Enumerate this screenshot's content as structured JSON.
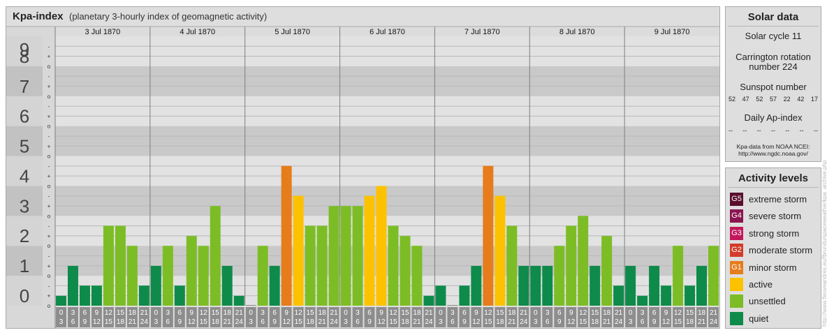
{
  "header": {
    "title": "Kpa-index",
    "subtitle": "(planetary 3-hourly index of geomagnetic activity)"
  },
  "chart_data": {
    "type": "bar",
    "title": "Kpa-index",
    "subtitle": "(planetary 3-hourly index of geomagnetic activity)",
    "ylim": [
      0,
      9
    ],
    "y_ticks": [
      "0",
      "1",
      "2",
      "3",
      "4",
      "5",
      "6",
      "7",
      "8",
      "9"
    ],
    "minor_ticks": [
      "-",
      "o",
      "+"
    ],
    "days": [
      "3 Jul 1870",
      "4 Jul 1870",
      "5 Jul 1870",
      "6 Jul 1870",
      "7 Jul 1870",
      "8 Jul 1870",
      "9 Jul 1870"
    ],
    "intervals": [
      [
        "0",
        "3"
      ],
      [
        "3",
        "6"
      ],
      [
        "6",
        "9"
      ],
      [
        "9",
        "12"
      ],
      [
        "12",
        "15"
      ],
      [
        "15",
        "18"
      ],
      [
        "18",
        "21"
      ],
      [
        "21",
        "24"
      ]
    ],
    "values": [
      [
        0.33,
        1.33,
        0.67,
        0.67,
        2.67,
        2.67,
        2.0,
        0.67
      ],
      [
        1.33,
        2.0,
        0.67,
        2.33,
        2.0,
        3.33,
        1.33,
        0.33
      ],
      [
        0.0,
        2.0,
        1.33,
        4.67,
        3.67,
        2.67,
        2.67,
        3.33
      ],
      [
        3.33,
        3.33,
        3.67,
        4.0,
        2.67,
        2.33,
        2.0,
        0.33
      ],
      [
        0.67,
        0.0,
        0.67,
        1.33,
        4.67,
        3.67,
        2.67,
        1.33
      ],
      [
        1.33,
        1.33,
        2.0,
        2.67,
        3.0,
        1.33,
        2.33,
        0.67
      ],
      [
        1.33,
        0.33,
        1.33,
        0.67,
        2.0,
        0.67,
        1.33,
        2.0
      ]
    ],
    "colors": {
      "quiet": "#0e8b4a",
      "unsettled": "#7cbd25",
      "active": "#fcc200",
      "minor_storm": "#e67c1c",
      "moderate_storm": "#d33b2a",
      "strong_storm": "#c2185b",
      "severe_storm": "#8b1550",
      "extreme_storm": "#5a0e2e"
    }
  },
  "solar": {
    "title": "Solar data",
    "cycle": "Solar cycle 11",
    "rotation_line1": "Carrington rotation",
    "rotation_line2": "number 224",
    "sunspot_title": "Sunspot number",
    "sunspots": [
      "52",
      "47",
      "52",
      "57",
      "22",
      "42",
      "17"
    ],
    "ap_title": "Daily Ap-index",
    "ap_values": [
      "--",
      "--",
      "--",
      "--",
      "--",
      "--",
      "--"
    ],
    "credit_line1": "Kpa-data from NOAA NCEI:",
    "credit_line2": "http://www.ngdc.noaa.gov/"
  },
  "levels": {
    "title": "Activity levels",
    "items": [
      {
        "code": "G5",
        "label": "extreme storm",
        "color": "#5a0e2e"
      },
      {
        "code": "G4",
        "label": "severe storm",
        "color": "#8b1550"
      },
      {
        "code": "G3",
        "label": "strong storm",
        "color": "#c2185b"
      },
      {
        "code": "G2",
        "label": "moderate storm",
        "color": "#d33b2a"
      },
      {
        "code": "G1",
        "label": "minor storm",
        "color": "#e67c1c"
      },
      {
        "code": "",
        "label": "active",
        "color": "#fcc200"
      },
      {
        "code": "",
        "label": "unsettled",
        "color": "#7cbd25"
      },
      {
        "code": "",
        "label": "quiet",
        "color": "#0e8b4a"
      }
    ]
  },
  "watermark": "http://www.fleuveandres.eu/fbrundu/spaceweather/kpa_archive.php"
}
